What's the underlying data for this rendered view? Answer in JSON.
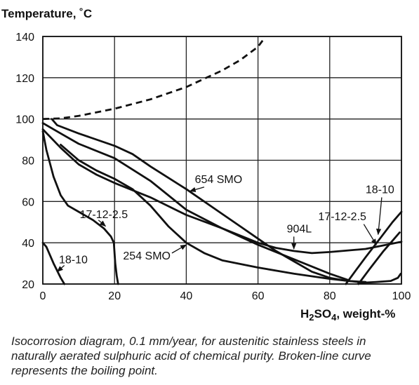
{
  "chart_data": {
    "type": "line",
    "ylabel": "Temperature, ˚C",
    "xlabel_parts": [
      "H",
      "2",
      "SO",
      "4",
      ", weight-%"
    ],
    "xlim": [
      0,
      100
    ],
    "ylim": [
      20,
      140
    ],
    "xticks": [
      "0",
      "20",
      "40",
      "60",
      "80",
      "100"
    ],
    "yticks": [
      "140",
      "120",
      "100",
      "80",
      "60",
      "40",
      "20"
    ],
    "grid": true,
    "curves": [
      {
        "id": "boiling-point",
        "dashed": true,
        "points": [
          [
            0,
            100
          ],
          [
            5,
            100.3
          ],
          [
            10,
            101.5
          ],
          [
            20,
            105
          ],
          [
            30,
            109.5
          ],
          [
            40,
            115.5
          ],
          [
            50,
            123.5
          ],
          [
            55,
            128.5
          ],
          [
            60,
            135
          ],
          [
            61.5,
            138.5
          ]
        ]
      },
      {
        "id": "654-smo",
        "points": [
          [
            2.5,
            100
          ],
          [
            4,
            97
          ],
          [
            10,
            93
          ],
          [
            20,
            87
          ],
          [
            25,
            83
          ],
          [
            30,
            77
          ],
          [
            40,
            66
          ],
          [
            50,
            54
          ],
          [
            55,
            48
          ],
          [
            60,
            42
          ],
          [
            65,
            36
          ],
          [
            70,
            31
          ],
          [
            75,
            26
          ],
          [
            80,
            23
          ],
          [
            85,
            21.5
          ],
          [
            90,
            21
          ]
        ]
      },
      {
        "id": "904l",
        "points": [
          [
            0,
            98
          ],
          [
            5,
            93
          ],
          [
            10,
            88
          ],
          [
            20,
            81
          ],
          [
            30,
            70
          ],
          [
            40,
            56
          ],
          [
            50,
            47
          ],
          [
            60,
            40
          ],
          [
            65,
            37.5
          ],
          [
            70,
            36
          ],
          [
            75,
            35
          ],
          [
            80,
            35.5
          ],
          [
            90,
            37
          ],
          [
            100,
            40.5
          ]
        ]
      },
      {
        "id": "254-smo",
        "points": [
          [
            0,
            95
          ],
          [
            5,
            86
          ],
          [
            10,
            78
          ],
          [
            15,
            73
          ],
          [
            20,
            69
          ],
          [
            30,
            62
          ],
          [
            40,
            53.5
          ],
          [
            50,
            47
          ],
          [
            60,
            39
          ],
          [
            70,
            32
          ],
          [
            80,
            25
          ],
          [
            85,
            22
          ]
        ]
      },
      {
        "id": "17-12-2-5",
        "points": [
          [
            5,
            87.5
          ],
          [
            10,
            80
          ],
          [
            15,
            75
          ],
          [
            20,
            71
          ],
          [
            25,
            66
          ],
          [
            30,
            58
          ],
          [
            35,
            48
          ],
          [
            40,
            40
          ],
          [
            45,
            35
          ],
          [
            50,
            31.5
          ],
          [
            60,
            28
          ],
          [
            70,
            25
          ],
          [
            80,
            22.5
          ],
          [
            88,
            21
          ]
        ]
      },
      {
        "id": "17-12-2-5-low",
        "points": [
          [
            0,
            94
          ],
          [
            1,
            85
          ],
          [
            3,
            72
          ],
          [
            5,
            63
          ],
          [
            7,
            58
          ],
          [
            10,
            55
          ],
          [
            14,
            51
          ],
          [
            17,
            47
          ],
          [
            19,
            43
          ],
          [
            19.8,
            40
          ],
          [
            20.2,
            30
          ],
          [
            20.6,
            24
          ],
          [
            21,
            20
          ]
        ]
      },
      {
        "id": "18-10-low",
        "points": [
          [
            0,
            40
          ],
          [
            1,
            38
          ],
          [
            3,
            30
          ],
          [
            5,
            23
          ],
          [
            6,
            20
          ]
        ]
      },
      {
        "id": "17-12-2-5-right",
        "points": [
          [
            84.5,
            20
          ],
          [
            87,
            26
          ],
          [
            90,
            33
          ],
          [
            94,
            42
          ],
          [
            97.5,
            50
          ],
          [
            100,
            55
          ]
        ]
      },
      {
        "id": "18-10-right",
        "points": [
          [
            88,
            20
          ],
          [
            91,
            27
          ],
          [
            95,
            36
          ],
          [
            98,
            42
          ],
          [
            99.5,
            45
          ]
        ]
      },
      {
        "id": "right-base-curve",
        "points": [
          [
            88,
            20.5
          ],
          [
            93,
            21
          ],
          [
            97,
            21.5
          ],
          [
            99,
            23
          ],
          [
            99.8,
            25
          ]
        ]
      }
    ],
    "labels": [
      {
        "text": "654 SMO",
        "x": 49,
        "y": 71,
        "arrow": [
          [
            45,
            67
          ],
          [
            41,
            65
          ]
        ]
      },
      {
        "text": "18-10",
        "x": 94,
        "y": 66,
        "arrow": [
          [
            94.5,
            62
          ],
          [
            93.5,
            44
          ]
        ]
      },
      {
        "text": "17-12-2.5",
        "x": 83.5,
        "y": 53,
        "arrow": [
          [
            89.5,
            49
          ],
          [
            93,
            39
          ]
        ]
      },
      {
        "text": "904L",
        "x": 71.5,
        "y": 47,
        "arrow": [
          [
            70,
            43
          ],
          [
            70,
            37
          ]
        ]
      },
      {
        "text": "17-12-2.5",
        "x": 17,
        "y": 54,
        "arrow": [
          [
            15.5,
            51
          ],
          [
            17.5,
            48
          ]
        ]
      },
      {
        "text": "254 SMO",
        "x": 29,
        "y": 34,
        "arrow": [
          [
            36,
            35
          ],
          [
            40,
            39
          ]
        ]
      },
      {
        "text": "18-10",
        "x": 8.5,
        "y": 32,
        "arrow": [
          [
            6,
            29
          ],
          [
            4,
            26
          ]
        ]
      }
    ]
  },
  "caption": "Isocorrosion diagram, 0.1 mm/year, for austenitic stainless steels in naturally aerated sulphuric acid of chemical purity. Broken-line curve represents the boiling point."
}
